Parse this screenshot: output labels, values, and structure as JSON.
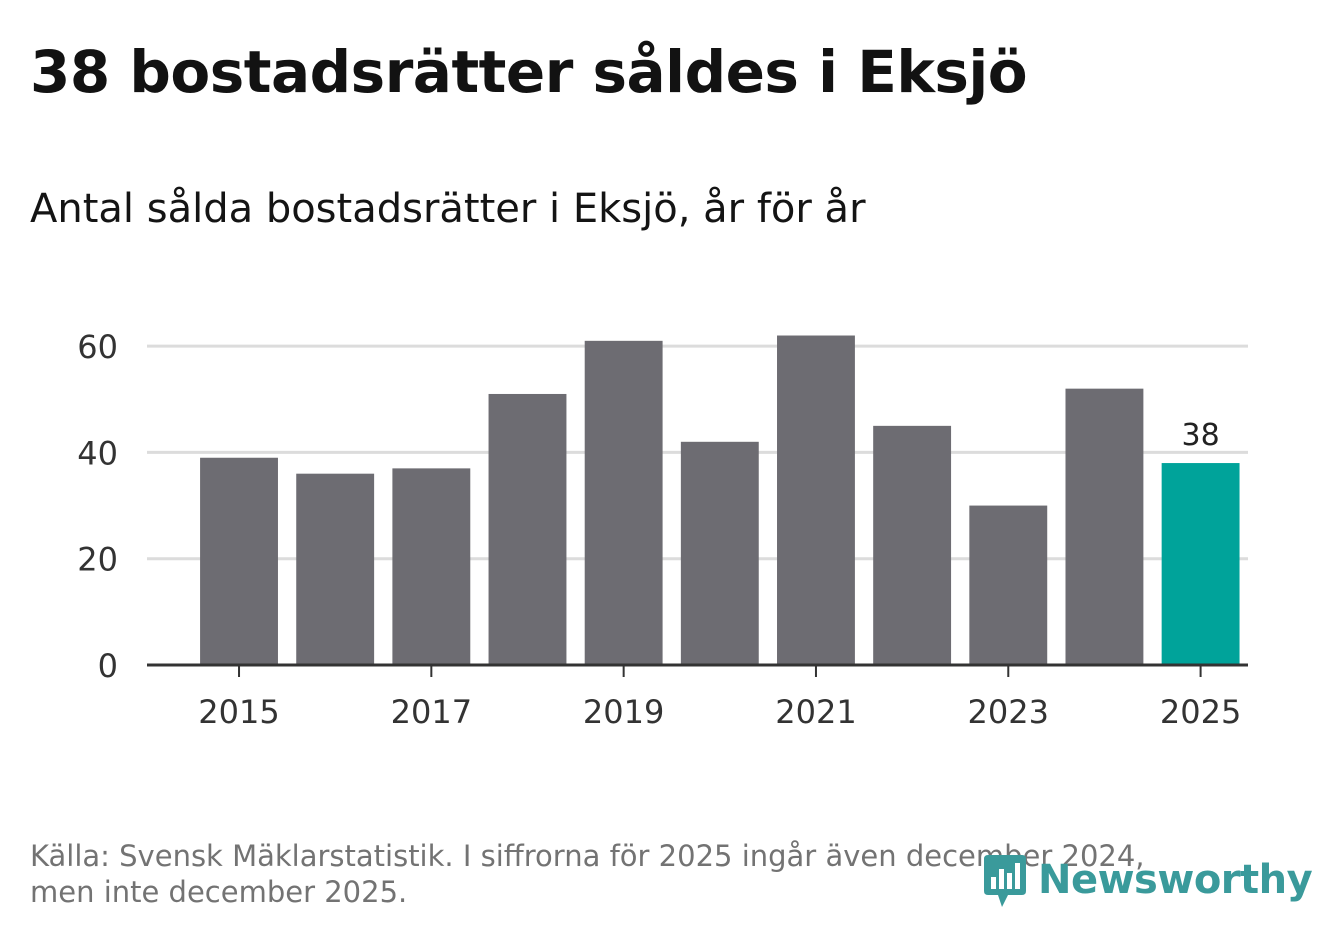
{
  "title": "38 bostadsrätter såldes i Eksjö",
  "subtitle": "Antal sålda bostadsrätter i Eksjö, år för år",
  "footer": {
    "line1": "Källa: Svensk Mäklarstatistik. I siffrorna för 2025 ingår även december 2024,",
    "line2": "men inte december 2025."
  },
  "logo": {
    "text": "Newsworthy",
    "icon": "bar-chart-speech-bubble-icon",
    "color": "#3a9a9b"
  },
  "colors": {
    "bar": "#6d6c72",
    "highlight": "#00a39a",
    "grid": "#dcdcdc",
    "axis": "#333333"
  },
  "chart_data": {
    "type": "bar",
    "title": "38 bostadsrätter såldes i Eksjö",
    "subtitle": "Antal sålda bostadsrätter i Eksjö, år för år",
    "xlabel": "",
    "ylabel": "",
    "categories": [
      "2015",
      "2016",
      "2017",
      "2018",
      "2019",
      "2020",
      "2021",
      "2022",
      "2023",
      "2024",
      "2025"
    ],
    "values": [
      39,
      36,
      37,
      51,
      61,
      42,
      62,
      45,
      30,
      52,
      38
    ],
    "highlight_index": 10,
    "data_labels": [
      {
        "index": 10,
        "text": "38"
      }
    ],
    "ylim": [
      0,
      70
    ],
    "yticks": [
      0,
      20,
      40,
      60
    ],
    "xtick_labels": [
      "2015",
      "2017",
      "2019",
      "2021",
      "2023",
      "2025"
    ],
    "grid": true
  }
}
